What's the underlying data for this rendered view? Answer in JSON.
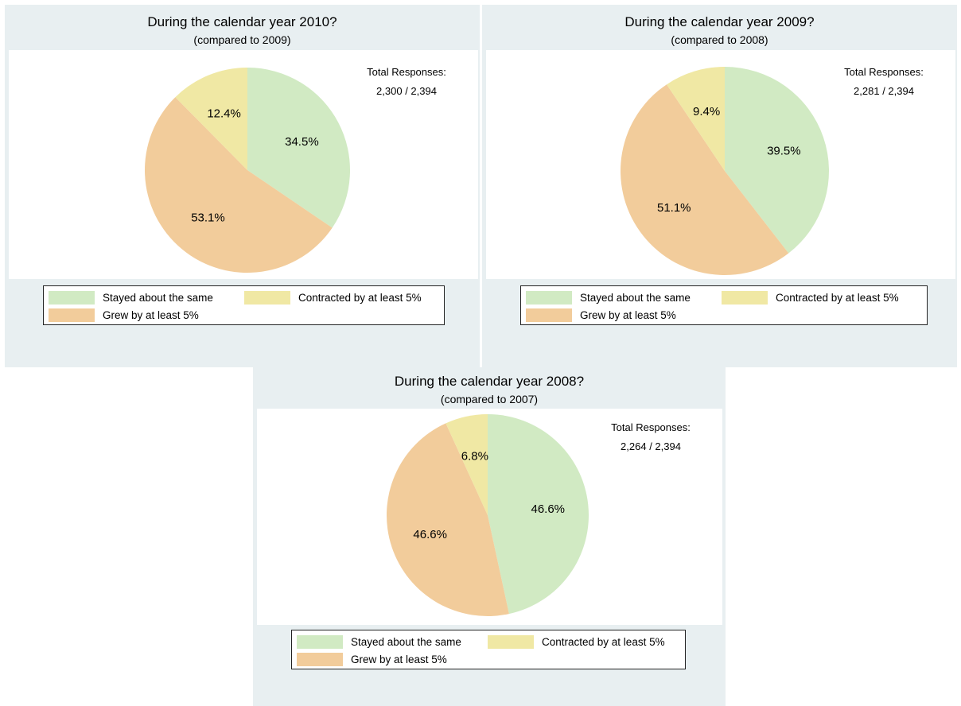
{
  "colors": {
    "stayed": "#d1eac3",
    "contracted": "#f0e8a4",
    "grew": "#f2cc9b",
    "panel_bg": "#e8eff1"
  },
  "legend": {
    "stayed": "Stayed about the same",
    "contracted": "Contracted by at least 5%",
    "grew": "Grew by at least 5%"
  },
  "chart_data": [
    {
      "type": "pie",
      "title": "During the calendar year 2010?",
      "subtitle": "(compared to 2009)",
      "total_label": "Total Responses:",
      "total_value": "2,300 / 2,394",
      "categories": [
        "Stayed about the same",
        "Grew by at least 5%",
        "Contracted by at least 5%"
      ],
      "values": [
        34.5,
        53.1,
        12.4
      ],
      "labels": [
        "34.5%",
        "53.1%",
        "12.4%"
      ]
    },
    {
      "type": "pie",
      "title": "During the calendar year 2009?",
      "subtitle": "(compared to 2008)",
      "total_label": "Total Responses:",
      "total_value": "2,281 / 2,394",
      "categories": [
        "Stayed about the same",
        "Grew by at least 5%",
        "Contracted by at least 5%"
      ],
      "values": [
        39.5,
        51.1,
        9.4
      ],
      "labels": [
        "39.5%",
        "51.1%",
        "9.4%"
      ]
    },
    {
      "type": "pie",
      "title": "During the calendar year 2008?",
      "subtitle": "(compared to 2007)",
      "total_label": "Total Responses:",
      "total_value": "2,264 / 2,394",
      "categories": [
        "Stayed about the same",
        "Grew by at least 5%",
        "Contracted by at least 5%"
      ],
      "values": [
        46.6,
        46.6,
        6.8
      ],
      "labels": [
        "46.6%",
        "46.6%",
        "6.8%"
      ]
    }
  ]
}
